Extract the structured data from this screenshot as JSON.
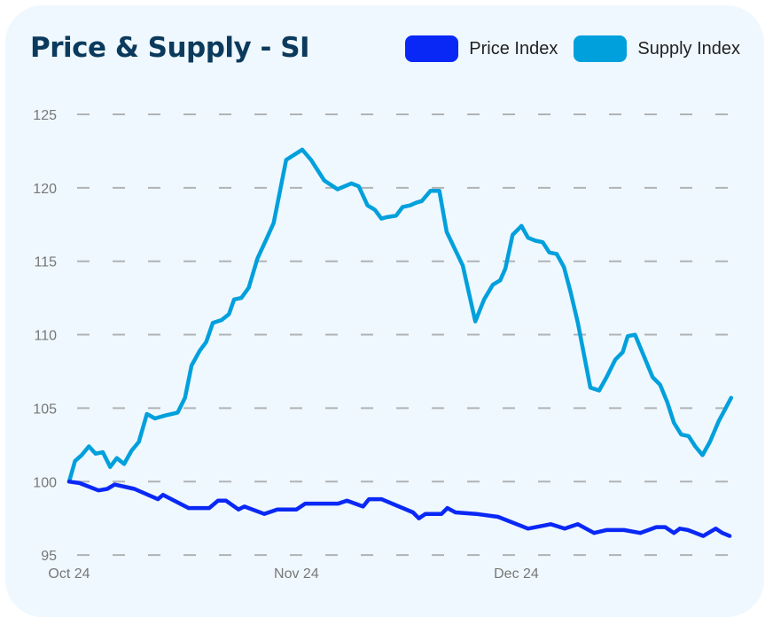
{
  "chart_data": {
    "type": "line",
    "title": "Price & Supply - SI",
    "xlabel": "",
    "ylabel": "",
    "x_unit": "days since Oct 24",
    "ylim": [
      95,
      125
    ],
    "xlim": [
      0,
      91
    ],
    "grid": true,
    "legend_placement": "top-right",
    "yticks": [
      95,
      100,
      105,
      110,
      115,
      120,
      125
    ],
    "xticks": [
      {
        "label": "Oct 24",
        "x": 0
      },
      {
        "label": "Nov 24",
        "x": 31
      },
      {
        "label": "Dec 24",
        "x": 61
      }
    ],
    "series": [
      {
        "name": "Supply Index",
        "color": "#00a0dc",
        "x": [
          0,
          0.8,
          1.7,
          2.7,
          3.6,
          4.6,
          5.6,
          6.5,
          7.5,
          8.5,
          9.5,
          10.6,
          11.7,
          13.1,
          14.8,
          15.8,
          16.7,
          17.8,
          18.7,
          19.6,
          20.8,
          21.8,
          22.5,
          23.5,
          24.5,
          25.7,
          26.9,
          27.9,
          29.6,
          31.8,
          33,
          34.8,
          36.6,
          38.5,
          39.5,
          40.7,
          41.7,
          42.6,
          43.3,
          44.6,
          45.5,
          46.5,
          47.4,
          48.1,
          49.3,
          50.5,
          51.5,
          53.7,
          55.4,
          56.6,
          57.8,
          58.8,
          59.5,
          60.5,
          61.7,
          62.6,
          63.6,
          64.6,
          65.5,
          66.5,
          67.5,
          68.4,
          69.4,
          71.1,
          72.3,
          73.3,
          74.5,
          75.5,
          76.2,
          77.2,
          79.6,
          80.6,
          81.6,
          82.5,
          83.5,
          84.5,
          85.4,
          86.4,
          87.4,
          88.6,
          90.3
        ],
        "values": [
          100,
          101.4,
          101.8,
          102.4,
          101.9,
          102.0,
          101.0,
          101.6,
          101.2,
          102.1,
          102.7,
          104.6,
          104.3,
          104.5,
          104.7,
          105.7,
          107.9,
          108.9,
          109.5,
          110.8,
          111.0,
          111.4,
          112.4,
          112.5,
          113.2,
          115.2,
          116.5,
          117.6,
          121.9,
          122.6,
          121.9,
          120.5,
          119.9,
          120.3,
          120.1,
          118.8,
          118.5,
          117.9,
          118.0,
          118.1,
          118.7,
          118.8,
          119.0,
          119.1,
          119.8,
          119.8,
          117.0,
          114.7,
          110.9,
          112.4,
          113.4,
          113.7,
          114.5,
          116.8,
          117.4,
          116.6,
          116.4,
          116.3,
          115.6,
          115.5,
          114.6,
          112.9,
          110.8,
          106.4,
          106.2,
          107.1,
          108.3,
          108.8,
          109.9,
          110.0,
          107.1,
          106.6,
          105.4,
          104.0,
          103.2,
          103.1,
          102.4,
          101.8,
          102.7,
          104.1,
          105.7
        ]
      },
      {
        "name": "Price Index",
        "color": "#0a28f5",
        "x": [
          0,
          1.4,
          4,
          5.2,
          6.2,
          8.9,
          12.1,
          12.8,
          16.3,
          19.1,
          20.3,
          21.4,
          23.1,
          23.9,
          26.6,
          28.4,
          31,
          32.2,
          36.7,
          37.9,
          40.1,
          40.9,
          42.6,
          46.9,
          47.7,
          48.6,
          50.8,
          51.6,
          52.7,
          55.5,
          58.5,
          62.6,
          65.7,
          67.6,
          69.4,
          71.6,
          73.3,
          75.7,
          77.9,
          80.1,
          81.3,
          82.5,
          83.3,
          84.4,
          86.5,
          88.2,
          89.1,
          90.1
        ],
        "values": [
          100,
          99.9,
          99.4,
          99.5,
          99.8,
          99.5,
          98.8,
          99.1,
          98.2,
          98.2,
          98.7,
          98.7,
          98.1,
          98.3,
          97.8,
          98.1,
          98.1,
          98.5,
          98.5,
          98.7,
          98.3,
          98.8,
          98.8,
          97.9,
          97.5,
          97.8,
          97.8,
          98.2,
          97.9,
          97.8,
          97.6,
          96.8,
          97.1,
          96.8,
          97.1,
          96.5,
          96.7,
          96.7,
          96.5,
          96.9,
          96.9,
          96.5,
          96.8,
          96.7,
          96.3,
          96.8,
          96.5,
          96.3
        ]
      }
    ]
  }
}
